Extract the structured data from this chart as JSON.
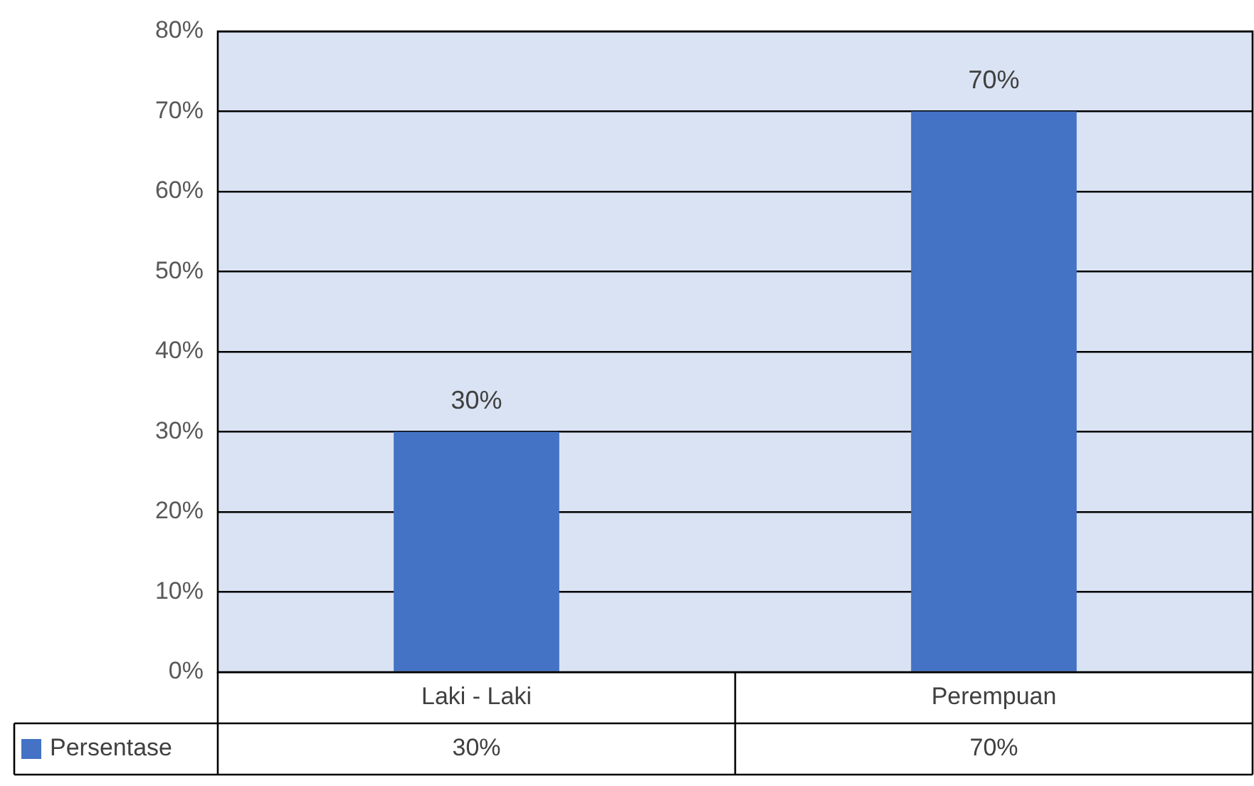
{
  "chart_data": {
    "type": "bar",
    "categories": [
      "Laki - Laki",
      "Perempuan"
    ],
    "series": [
      {
        "name": "Persentase",
        "color": "#4472c4",
        "values": [
          30,
          70
        ],
        "value_labels": [
          "30%",
          "70%"
        ]
      }
    ],
    "ylim": [
      0,
      80
    ],
    "yticks": [
      {
        "value": 0,
        "label": "0%"
      },
      {
        "value": 10,
        "label": "10%"
      },
      {
        "value": 20,
        "label": "20%"
      },
      {
        "value": 30,
        "label": "30%"
      },
      {
        "value": 40,
        "label": "40%"
      },
      {
        "value": 50,
        "label": "50%"
      },
      {
        "value": 60,
        "label": "60%"
      },
      {
        "value": 70,
        "label": "70%"
      },
      {
        "value": 80,
        "label": "80%"
      }
    ],
    "grid": "y",
    "legend": "bottom left"
  }
}
